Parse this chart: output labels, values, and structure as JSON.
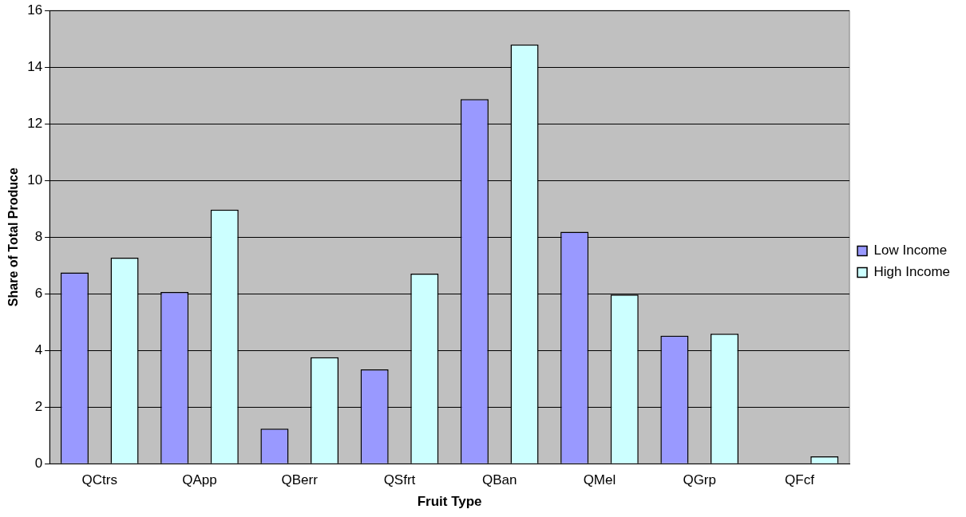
{
  "chart_data": {
    "type": "bar",
    "xlabel": "Fruit Type",
    "ylabel": "Share of Total Produce",
    "categories": [
      "QCtrs",
      "QApp",
      "QBerr",
      "QSfrt",
      "QBan",
      "QMel",
      "QGrp",
      "QFcf"
    ],
    "series": [
      {
        "name": "Low Income",
        "color": "#9999ff",
        "values": [
          6.75,
          6.06,
          1.24,
          3.33,
          12.87,
          8.19,
          4.52,
          0
        ]
      },
      {
        "name": "High Income",
        "color": "#ccffff",
        "values": [
          7.27,
          8.97,
          3.76,
          6.71,
          14.8,
          5.97,
          4.59,
          0.26
        ]
      }
    ],
    "ylim": [
      0,
      16
    ],
    "yticks": [
      0,
      2,
      4,
      6,
      8,
      10,
      12,
      14,
      16
    ],
    "grid": "y",
    "legend": "right"
  }
}
